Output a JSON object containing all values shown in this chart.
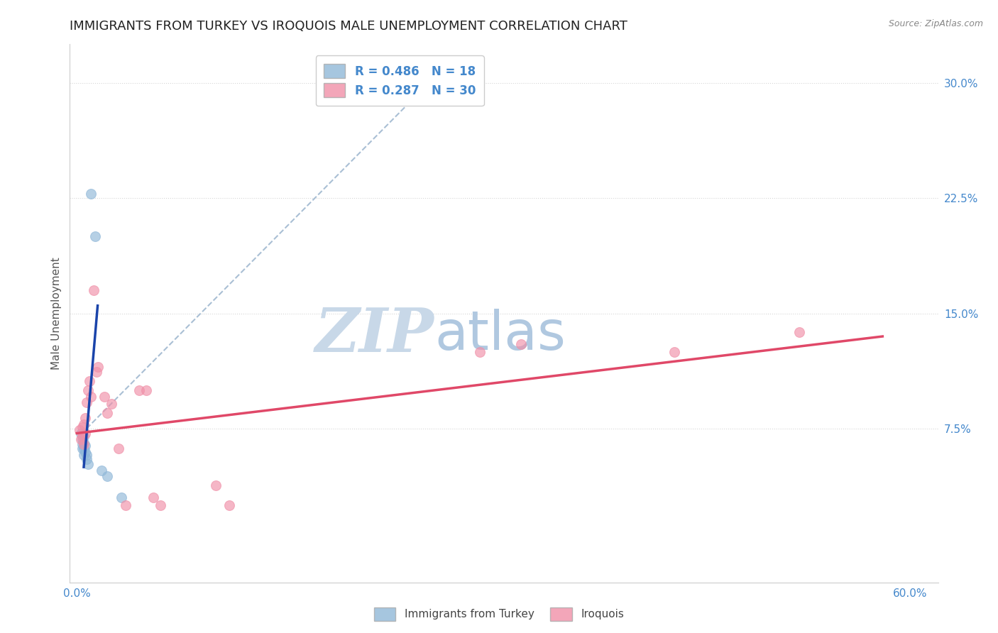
{
  "title": "IMMIGRANTS FROM TURKEY VS IROQUOIS MALE UNEMPLOYMENT CORRELATION CHART",
  "source": "Source: ZipAtlas.com",
  "ylabel": "Male Unemployment",
  "xlim": [
    -0.005,
    0.62
  ],
  "ylim": [
    -0.025,
    0.325
  ],
  "yticks": [
    0.075,
    0.15,
    0.225,
    0.3
  ],
  "ytick_labels": [
    "7.5%",
    "15.0%",
    "22.5%",
    "30.0%"
  ],
  "xticks": [
    0.0,
    0.15,
    0.3,
    0.45,
    0.6
  ],
  "xtick_labels": [
    "0.0%",
    "",
    "",
    "",
    "60.0%"
  ],
  "legend_entries": [
    {
      "label": "R = 0.486   N = 18",
      "color": "#a8c8e8"
    },
    {
      "label": "R = 0.287   N = 30",
      "color": "#f4a0b8"
    }
  ],
  "blue_scatter": [
    [
      0.003,
      0.072
    ],
    [
      0.004,
      0.068
    ],
    [
      0.004,
      0.065
    ],
    [
      0.004,
      0.062
    ],
    [
      0.005,
      0.07
    ],
    [
      0.005,
      0.066
    ],
    [
      0.005,
      0.062
    ],
    [
      0.005,
      0.058
    ],
    [
      0.006,
      0.064
    ],
    [
      0.006,
      0.06
    ],
    [
      0.007,
      0.058
    ],
    [
      0.007,
      0.055
    ],
    [
      0.008,
      0.052
    ],
    [
      0.01,
      0.228
    ],
    [
      0.013,
      0.2
    ],
    [
      0.018,
      0.048
    ],
    [
      0.022,
      0.044
    ],
    [
      0.032,
      0.03
    ]
  ],
  "pink_scatter": [
    [
      0.002,
      0.074
    ],
    [
      0.003,
      0.068
    ],
    [
      0.004,
      0.076
    ],
    [
      0.004,
      0.07
    ],
    [
      0.005,
      0.078
    ],
    [
      0.005,
      0.065
    ],
    [
      0.006,
      0.082
    ],
    [
      0.006,
      0.072
    ],
    [
      0.007,
      0.092
    ],
    [
      0.008,
      0.1
    ],
    [
      0.009,
      0.106
    ],
    [
      0.01,
      0.096
    ],
    [
      0.012,
      0.165
    ],
    [
      0.014,
      0.112
    ],
    [
      0.015,
      0.115
    ],
    [
      0.02,
      0.096
    ],
    [
      0.022,
      0.085
    ],
    [
      0.025,
      0.091
    ],
    [
      0.03,
      0.062
    ],
    [
      0.035,
      0.025
    ],
    [
      0.045,
      0.1
    ],
    [
      0.05,
      0.1
    ],
    [
      0.055,
      0.03
    ],
    [
      0.06,
      0.025
    ],
    [
      0.1,
      0.038
    ],
    [
      0.11,
      0.025
    ],
    [
      0.29,
      0.125
    ],
    [
      0.32,
      0.13
    ],
    [
      0.43,
      0.125
    ],
    [
      0.52,
      0.138
    ]
  ],
  "blue_line": {
    "x": [
      0.005,
      0.015
    ],
    "y": [
      0.05,
      0.155
    ]
  },
  "pink_line": {
    "x": [
      0.0,
      0.58
    ],
    "y": [
      0.072,
      0.135
    ]
  },
  "blue_dashed_line": {
    "x": [
      0.007,
      0.27
    ],
    "y": [
      0.075,
      0.315
    ]
  },
  "scatter_size": 100,
  "blue_color": "#90b8d8",
  "pink_color": "#f090a8",
  "blue_line_color": "#1a44aa",
  "pink_line_color": "#e04868",
  "dashed_color": "#a0b8d0",
  "watermark_zip": "ZIP",
  "watermark_atlas": "atlas",
  "watermark_color_zip": "#c8d8e8",
  "watermark_color_atlas": "#b0c8e0",
  "background_color": "#ffffff",
  "grid_color": "#cccccc",
  "title_fontsize": 13,
  "axis_label_fontsize": 11,
  "tick_fontsize": 11,
  "tick_color": "#4488cc"
}
